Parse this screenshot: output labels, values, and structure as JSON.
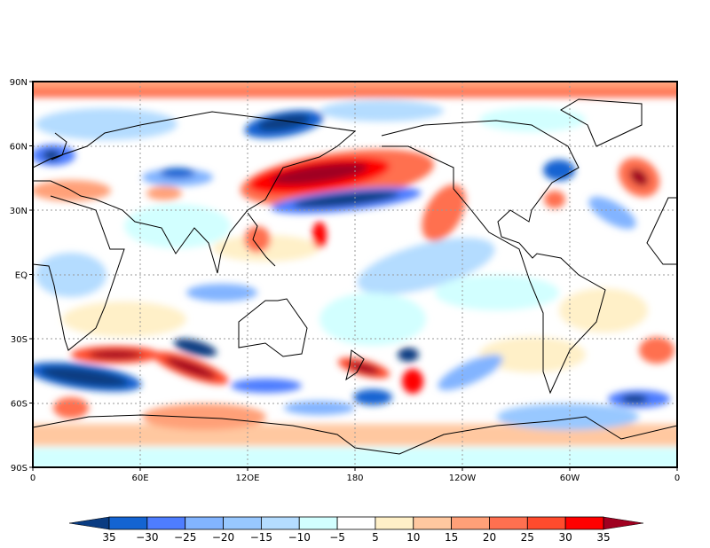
{
  "map": {
    "lat_labels": [
      "90N",
      "60N",
      "30N",
      "EQ",
      "30S",
      "60S",
      "90S"
    ],
    "lat_values": [
      90,
      60,
      30,
      0,
      -30,
      -60,
      -90
    ],
    "lon_labels": [
      "0",
      "60E",
      "12OE",
      "180",
      "12OW",
      "60W",
      "0"
    ],
    "lon_values": [
      0,
      60,
      120,
      180,
      240,
      300,
      360
    ]
  },
  "colorbar": {
    "labels": [
      "35",
      "−30",
      "−25",
      "−20",
      "−15",
      "−10",
      "−5",
      "5",
      "10",
      "15",
      "20",
      "25",
      "30",
      "35"
    ],
    "colors": [
      "#1464d2",
      "#4e7dff",
      "#82b4ff",
      "#98c8ff",
      "#b4dcff",
      "#d2ffff",
      "#ffffff",
      "#fff0c8",
      "#ffc8a0",
      "#ffa078",
      "#ff7050",
      "#ff4b2d",
      "#ff0000"
    ],
    "low_color": "#0a3c82",
    "high_color": "#a00020"
  }
}
